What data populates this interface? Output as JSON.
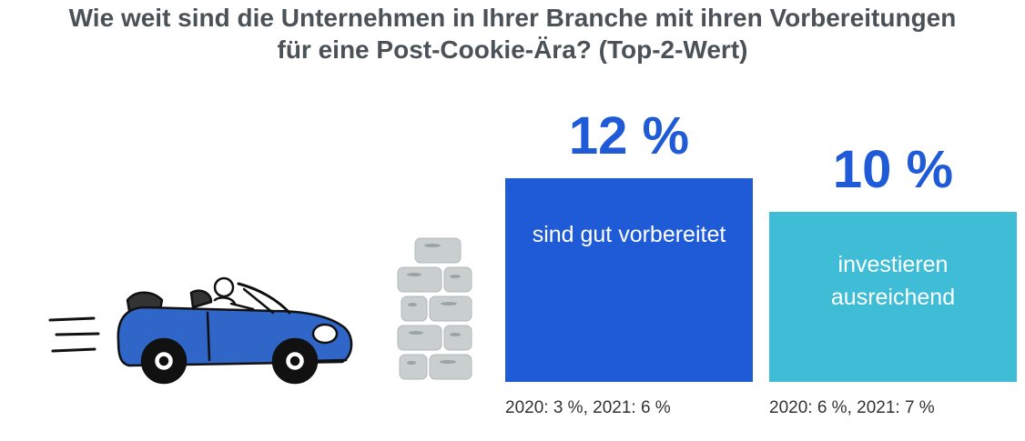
{
  "title": {
    "line1": "Wie weit sind die Unternehmen in Ihrer Branche mit ihren Vorbereitungen",
    "line2": "für eine Post-Cookie-Ära? (Top-2-Wert)"
  },
  "illustration": {
    "car_icon": "convertible-car-icon",
    "wall_icon": "brick-wall-icon",
    "car_color": "#2f66c8",
    "brick_color": "#c9cfcf"
  },
  "chart_data": {
    "type": "bar",
    "categories": [
      "sind gut vorbereitet",
      "investieren ausreichend"
    ],
    "values": [
      12,
      10
    ],
    "value_labels": [
      "12 %",
      "10 %"
    ],
    "colors": [
      "#1f5bd6",
      "#3fbdd6"
    ],
    "ylim": [
      0,
      15
    ],
    "grid": false,
    "previous_values": [
      "2020: 3 %, 2021: 6 %",
      "2020: 6 %, 2021: 7 %"
    ]
  }
}
